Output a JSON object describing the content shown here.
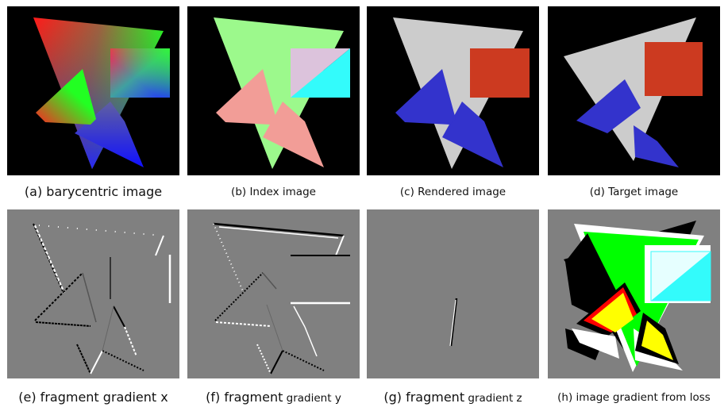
{
  "figure": {
    "panels": [
      {
        "id": "a",
        "caption": "(a) barycentric image"
      },
      {
        "id": "b",
        "caption": "(b) Index image"
      },
      {
        "id": "c",
        "caption": "(c) Rendered image"
      },
      {
        "id": "d",
        "caption": "(d) Target image"
      },
      {
        "id": "e",
        "caption": "(e) fragment gradient x"
      },
      {
        "id": "f",
        "caption_part1": "(f) fragment",
        "caption_part2": " gradient y"
      },
      {
        "id": "g",
        "caption_part1": "(g) fragment",
        "caption_part2": " gradient z"
      },
      {
        "id": "h",
        "caption": "(h) image gradient from loss"
      }
    ]
  },
  "colors": {
    "background_black": "#000000",
    "gray_gradient_bg": "#808080",
    "index_green": "#9cf98c",
    "index_pink": "#f29d97",
    "index_lavender": "#dcc3dc",
    "index_cyan": "#33fbfb",
    "rendered_gray": "#cccccc",
    "rendered_red": "#cc3a20",
    "rendered_blue": "#3333cc",
    "loss_green": "#00ff00",
    "loss_yellow": "#ffff00",
    "loss_red": "#ff0000"
  }
}
